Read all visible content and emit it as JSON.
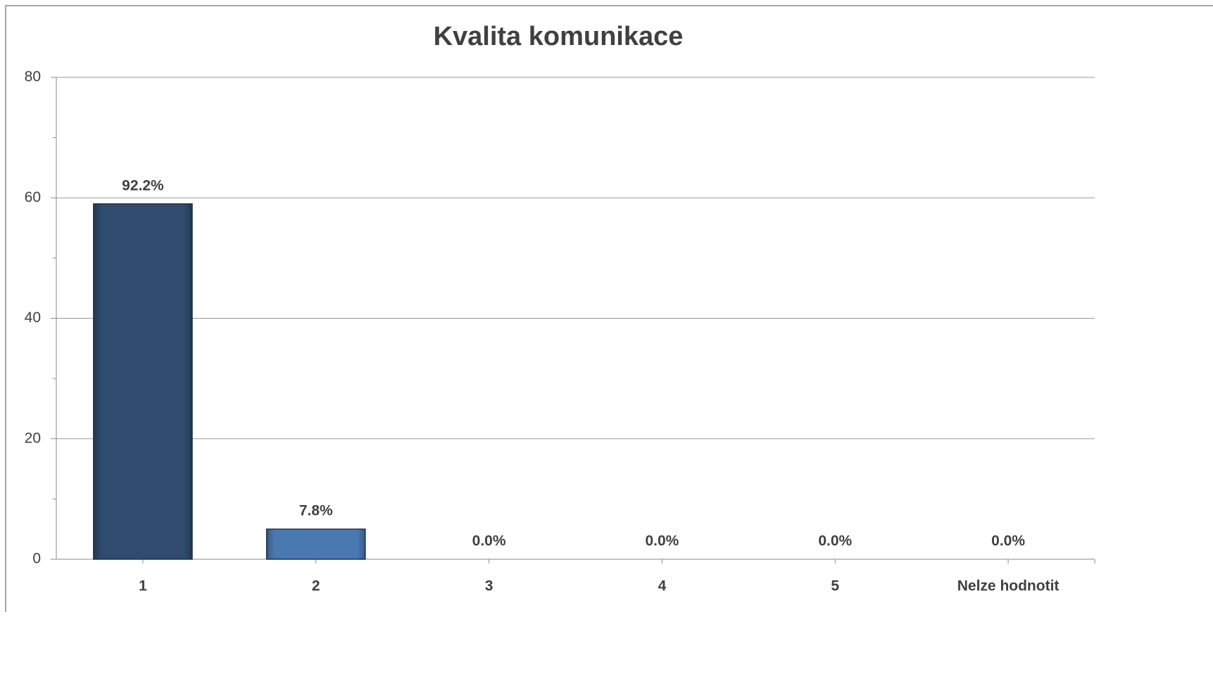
{
  "chart_data": {
    "type": "bar",
    "title": "Kvalita komunikace",
    "categories": [
      "1",
      "2",
      "3",
      "4",
      "5",
      "Nelze hodnotit"
    ],
    "values": [
      59,
      5,
      0,
      0,
      0,
      0
    ],
    "value_labels": [
      "92.2%",
      "7.8%",
      "0.0%",
      "0.0%",
      "0.0%",
      "0.0%"
    ],
    "colors": [
      "#2f4b6e",
      "#4a78b0",
      "#4a78b0",
      "#4a78b0",
      "#4a78b0",
      "#4a78b0"
    ],
    "ylim": [
      0,
      80
    ],
    "yticks": [
      0,
      20,
      40,
      60,
      80
    ],
    "yminorticks": [
      10,
      30,
      50,
      70
    ],
    "grid": true
  }
}
